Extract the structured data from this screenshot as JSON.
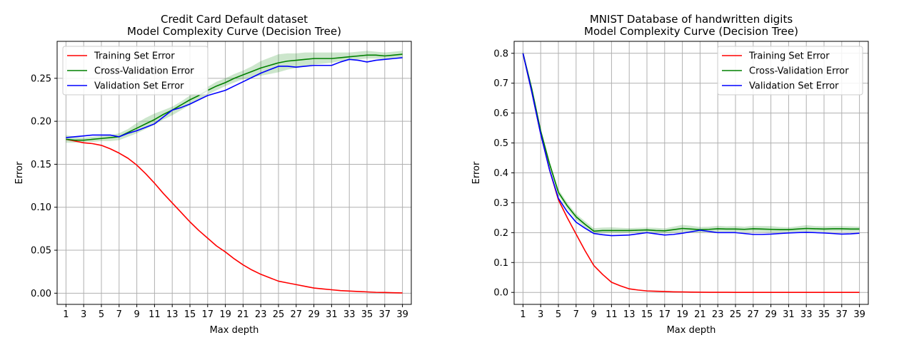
{
  "figure": {
    "background": "#ffffff"
  },
  "chart_data": [
    {
      "type": "line",
      "title": [
        "Credit Card Default dataset",
        "Model Complexity Curve (Decision Tree)"
      ],
      "xlabel": "Max depth",
      "ylabel": "Error",
      "xlim": [
        0,
        40
      ],
      "ylim": [
        -0.013,
        0.293
      ],
      "x": [
        1,
        2,
        3,
        4,
        5,
        6,
        7,
        8,
        9,
        10,
        11,
        12,
        13,
        14,
        15,
        16,
        17,
        18,
        19,
        20,
        21,
        22,
        23,
        24,
        25,
        26,
        27,
        28,
        29,
        30,
        31,
        32,
        33,
        34,
        35,
        36,
        37,
        38,
        39
      ],
      "xticks": [
        1,
        3,
        5,
        7,
        9,
        11,
        13,
        15,
        17,
        19,
        21,
        23,
        25,
        27,
        29,
        31,
        33,
        35,
        37,
        39
      ],
      "yticks": [
        0.0,
        0.05,
        0.1,
        0.15,
        0.2,
        0.25
      ],
      "ytick_labels": [
        "0.00",
        "0.05",
        "0.10",
        "0.15",
        "0.20",
        "0.25"
      ],
      "grid": true,
      "legend_position": "upper-left",
      "series": [
        {
          "name": "Training Set Error",
          "color": "#ff0000",
          "values": [
            0.179,
            0.177,
            0.175,
            0.174,
            0.172,
            0.168,
            0.163,
            0.157,
            0.149,
            0.139,
            0.128,
            0.116,
            0.105,
            0.094,
            0.083,
            0.073,
            0.064,
            0.055,
            0.048,
            0.04,
            0.033,
            0.027,
            0.022,
            0.018,
            0.014,
            0.012,
            0.01,
            0.008,
            0.006,
            0.005,
            0.004,
            0.003,
            0.0025,
            0.002,
            0.0015,
            0.001,
            0.0008,
            0.0005,
            0.0003
          ]
        },
        {
          "name": "Cross-Validation Error",
          "color": "#008000",
          "values": [
            0.179,
            0.178,
            0.178,
            0.179,
            0.18,
            0.181,
            0.182,
            0.187,
            0.192,
            0.197,
            0.202,
            0.208,
            0.213,
            0.219,
            0.225,
            0.23,
            0.236,
            0.241,
            0.245,
            0.25,
            0.254,
            0.258,
            0.262,
            0.265,
            0.268,
            0.27,
            0.271,
            0.272,
            0.273,
            0.273,
            0.273,
            0.274,
            0.275,
            0.276,
            0.277,
            0.277,
            0.276,
            0.277,
            0.278
          ],
          "band_lower": [
            0.175,
            0.175,
            0.176,
            0.176,
            0.177,
            0.177,
            0.178,
            0.182,
            0.186,
            0.191,
            0.196,
            0.202,
            0.207,
            0.213,
            0.219,
            0.225,
            0.231,
            0.236,
            0.241,
            0.245,
            0.249,
            0.251,
            0.253,
            0.255,
            0.257,
            0.26,
            0.262,
            0.264,
            0.266,
            0.267,
            0.268,
            0.27,
            0.271,
            0.272,
            0.273,
            0.273,
            0.272,
            0.273,
            0.274
          ],
          "band_upper": [
            0.184,
            0.182,
            0.181,
            0.182,
            0.183,
            0.184,
            0.186,
            0.191,
            0.198,
            0.204,
            0.209,
            0.213,
            0.217,
            0.223,
            0.23,
            0.235,
            0.24,
            0.246,
            0.25,
            0.255,
            0.259,
            0.264,
            0.27,
            0.274,
            0.278,
            0.279,
            0.279,
            0.28,
            0.28,
            0.28,
            0.28,
            0.28,
            0.28,
            0.281,
            0.282,
            0.281,
            0.28,
            0.281,
            0.282
          ]
        },
        {
          "name": "Validation Set Error",
          "color": "#0000ff",
          "values": [
            0.181,
            0.182,
            0.183,
            0.184,
            0.184,
            0.184,
            0.182,
            0.186,
            0.189,
            0.193,
            0.197,
            0.205,
            0.213,
            0.216,
            0.22,
            0.225,
            0.23,
            0.233,
            0.236,
            0.241,
            0.246,
            0.251,
            0.256,
            0.26,
            0.264,
            0.264,
            0.263,
            0.264,
            0.265,
            0.265,
            0.265,
            0.269,
            0.272,
            0.271,
            0.269,
            0.271,
            0.272,
            0.273,
            0.274
          ]
        }
      ]
    },
    {
      "type": "line",
      "title": [
        "MNIST Database of handwritten digits",
        "Model Complexity Curve (Decision Tree)"
      ],
      "xlabel": "Max depth",
      "ylabel": "Error",
      "xlim": [
        0,
        40
      ],
      "ylim": [
        -0.04,
        0.84
      ],
      "x": [
        1,
        2,
        3,
        4,
        5,
        6,
        7,
        8,
        9,
        10,
        11,
        12,
        13,
        14,
        15,
        16,
        17,
        18,
        19,
        20,
        21,
        22,
        23,
        24,
        25,
        26,
        27,
        28,
        29,
        30,
        31,
        32,
        33,
        34,
        35,
        36,
        37,
        38,
        39
      ],
      "xticks": [
        1,
        3,
        5,
        7,
        9,
        11,
        13,
        15,
        17,
        19,
        21,
        23,
        25,
        27,
        29,
        31,
        33,
        35,
        37,
        39
      ],
      "yticks": [
        0.0,
        0.1,
        0.2,
        0.3,
        0.4,
        0.5,
        0.6,
        0.7,
        0.8
      ],
      "ytick_labels": [
        "0.0",
        "0.1",
        "0.2",
        "0.3",
        "0.4",
        "0.5",
        "0.6",
        "0.7",
        "0.8"
      ],
      "grid": true,
      "legend_position": "upper-right",
      "series": [
        {
          "name": "Training Set Error",
          "color": "#ff0000",
          "values": [
            0.8,
            0.67,
            0.53,
            0.41,
            0.31,
            0.25,
            0.195,
            0.14,
            0.09,
            0.06,
            0.034,
            0.022,
            0.012,
            0.008,
            0.005,
            0.004,
            0.003,
            0.002,
            0.0015,
            0.001,
            0.0008,
            0.0005,
            0.0004,
            0.0003,
            0.0002,
            0.0002,
            0.0001,
            0.0001,
            0.0001,
            0.0001,
            0.0001,
            0.0001,
            0.0001,
            0.0001,
            0.0001,
            0.0001,
            0.0001,
            0.0001,
            0.0001
          ]
        },
        {
          "name": "Cross-Validation Error",
          "color": "#008000",
          "values": [
            0.8,
            0.68,
            0.54,
            0.43,
            0.335,
            0.29,
            0.253,
            0.228,
            0.205,
            0.207,
            0.207,
            0.207,
            0.207,
            0.208,
            0.209,
            0.207,
            0.206,
            0.21,
            0.214,
            0.212,
            0.21,
            0.211,
            0.213,
            0.212,
            0.212,
            0.211,
            0.213,
            0.212,
            0.211,
            0.21,
            0.21,
            0.212,
            0.214,
            0.213,
            0.212,
            0.213,
            0.213,
            0.212,
            0.212
          ],
          "band_lower": [
            0.79,
            0.67,
            0.53,
            0.42,
            0.325,
            0.28,
            0.243,
            0.218,
            0.197,
            0.198,
            0.199,
            0.198,
            0.199,
            0.199,
            0.2,
            0.199,
            0.198,
            0.2,
            0.202,
            0.201,
            0.201,
            0.202,
            0.203,
            0.203,
            0.203,
            0.202,
            0.203,
            0.202,
            0.201,
            0.201,
            0.202,
            0.203,
            0.204,
            0.204,
            0.203,
            0.204,
            0.204,
            0.203,
            0.204
          ],
          "band_upper": [
            0.81,
            0.69,
            0.55,
            0.44,
            0.345,
            0.3,
            0.263,
            0.238,
            0.215,
            0.217,
            0.218,
            0.216,
            0.215,
            0.216,
            0.217,
            0.216,
            0.214,
            0.22,
            0.226,
            0.223,
            0.219,
            0.22,
            0.223,
            0.221,
            0.222,
            0.22,
            0.223,
            0.222,
            0.222,
            0.219,
            0.218,
            0.221,
            0.225,
            0.222,
            0.221,
            0.222,
            0.222,
            0.221,
            0.22
          ]
        },
        {
          "name": "Validation Set Error",
          "color": "#0000ff",
          "values": [
            0.8,
            0.67,
            0.53,
            0.41,
            0.315,
            0.27,
            0.235,
            0.215,
            0.197,
            0.193,
            0.19,
            0.191,
            0.192,
            0.196,
            0.2,
            0.196,
            0.192,
            0.194,
            0.198,
            0.203,
            0.208,
            0.204,
            0.2,
            0.2,
            0.2,
            0.197,
            0.194,
            0.194,
            0.195,
            0.197,
            0.199,
            0.2,
            0.201,
            0.2,
            0.199,
            0.197,
            0.195,
            0.196,
            0.198
          ]
        }
      ]
    }
  ]
}
